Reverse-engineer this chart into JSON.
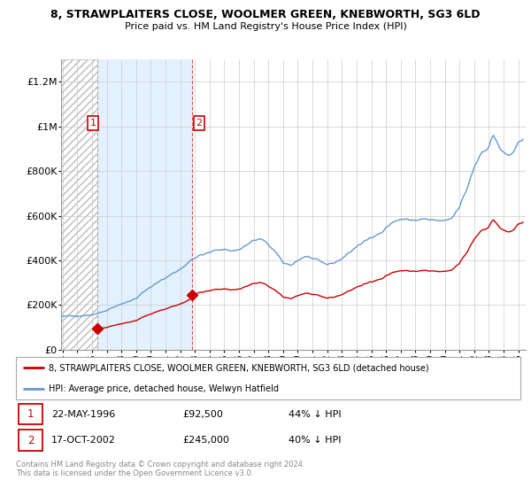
{
  "title1": "8, STRAWPLAITERS CLOSE, WOOLMER GREEN, KNEBWORTH, SG3 6LD",
  "title2": "Price paid vs. HM Land Registry's House Price Index (HPI)",
  "ylim": [
    0,
    1300000
  ],
  "yticks": [
    0,
    200000,
    400000,
    600000,
    800000,
    1000000,
    1200000
  ],
  "ytick_labels": [
    "£0",
    "£200K",
    "£400K",
    "£600K",
    "£800K",
    "£1M",
    "£1.2M"
  ],
  "purchase1": {
    "date_num": 1996.37,
    "price": 92500
  },
  "purchase2": {
    "date_num": 2002.79,
    "price": 245000
  },
  "vline1": 1996.37,
  "vline2": 2002.79,
  "hpi_color": "#6699cc",
  "price_color": "#cc0000",
  "hatch_color": "#dddddd",
  "blue_fill_color": "#ddeeff",
  "legend_label1": "8, STRAWPLAITERS CLOSE, WOOLMER GREEN, KNEBWORTH, SG3 6LD (detached house)",
  "legend_label2": "HPI: Average price, detached house, Welwyn Hatfield",
  "table_row1": [
    "1",
    "22-MAY-1996",
    "£92,500",
    "44% ↓ HPI"
  ],
  "table_row2": [
    "2",
    "17-OCT-2002",
    "£245,000",
    "40% ↓ HPI"
  ],
  "footnote": "Contains HM Land Registry data © Crown copyright and database right 2024.\nThis data is licensed under the Open Government Licence v3.0.",
  "xmin": 1993.9,
  "xmax": 2025.5
}
